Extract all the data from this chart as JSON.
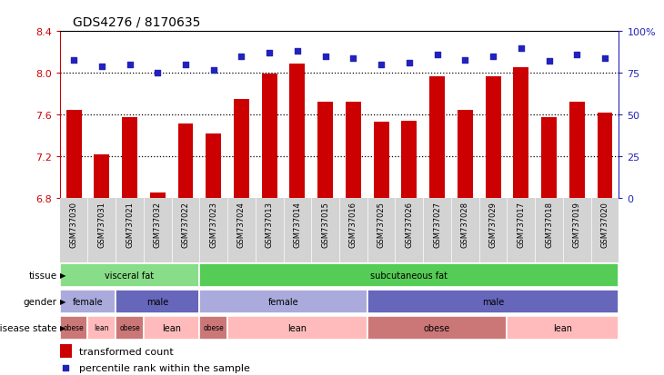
{
  "title": "GDS4276 / 8170635",
  "samples": [
    "GSM737030",
    "GSM737031",
    "GSM737021",
    "GSM737032",
    "GSM737022",
    "GSM737023",
    "GSM737024",
    "GSM737013",
    "GSM737014",
    "GSM737015",
    "GSM737016",
    "GSM737025",
    "GSM737026",
    "GSM737027",
    "GSM737028",
    "GSM737029",
    "GSM737017",
    "GSM737018",
    "GSM737019",
    "GSM737020"
  ],
  "bar_values": [
    7.65,
    7.22,
    7.58,
    6.855,
    7.52,
    7.42,
    7.75,
    7.99,
    8.09,
    7.72,
    7.72,
    7.53,
    7.54,
    7.97,
    7.65,
    7.97,
    8.05,
    7.58,
    7.72,
    7.62
  ],
  "dot_values": [
    83,
    79,
    80,
    75,
    80,
    77,
    85,
    87,
    88,
    85,
    84,
    80,
    81,
    86,
    83,
    85,
    90,
    82,
    86,
    84
  ],
  "ylim_left": [
    6.8,
    8.4
  ],
  "ylim_right": [
    0,
    100
  ],
  "yticks_left": [
    6.8,
    7.2,
    7.6,
    8.0,
    8.4
  ],
  "yticks_right": [
    0,
    25,
    50,
    75,
    100
  ],
  "ytick_labels_right": [
    "0",
    "25",
    "50",
    "75",
    "100%"
  ],
  "bar_color": "#cc0000",
  "dot_color": "#2222bb",
  "bar_bottom": 6.8,
  "tissue_groups": [
    {
      "label": "visceral fat",
      "start": 0,
      "end": 5,
      "color": "#88dd88"
    },
    {
      "label": "subcutaneous fat",
      "start": 5,
      "end": 20,
      "color": "#55cc55"
    }
  ],
  "gender_groups": [
    {
      "label": "female",
      "start": 0,
      "end": 2,
      "color": "#aaaadd"
    },
    {
      "label": "male",
      "start": 2,
      "end": 5,
      "color": "#6666bb"
    },
    {
      "label": "female",
      "start": 5,
      "end": 11,
      "color": "#aaaadd"
    },
    {
      "label": "male",
      "start": 11,
      "end": 20,
      "color": "#6666bb"
    }
  ],
  "disease_groups": [
    {
      "label": "obese",
      "start": 0,
      "end": 1,
      "color": "#cc7777"
    },
    {
      "label": "lean",
      "start": 1,
      "end": 2,
      "color": "#ffbbbb"
    },
    {
      "label": "obese",
      "start": 2,
      "end": 3,
      "color": "#cc7777"
    },
    {
      "label": "lean",
      "start": 3,
      "end": 5,
      "color": "#ffbbbb"
    },
    {
      "label": "obese",
      "start": 5,
      "end": 6,
      "color": "#cc7777"
    },
    {
      "label": "lean",
      "start": 6,
      "end": 11,
      "color": "#ffbbbb"
    },
    {
      "label": "obese",
      "start": 11,
      "end": 16,
      "color": "#cc7777"
    },
    {
      "label": "lean",
      "start": 16,
      "end": 20,
      "color": "#ffbbbb"
    }
  ],
  "hgrid_values": [
    7.2,
    7.6,
    8.0
  ],
  "left_axis_color": "#cc0000",
  "right_axis_color": "#2222bb",
  "legend_bar_label": "transformed count",
  "legend_dot_label": "percentile rank within the sample"
}
